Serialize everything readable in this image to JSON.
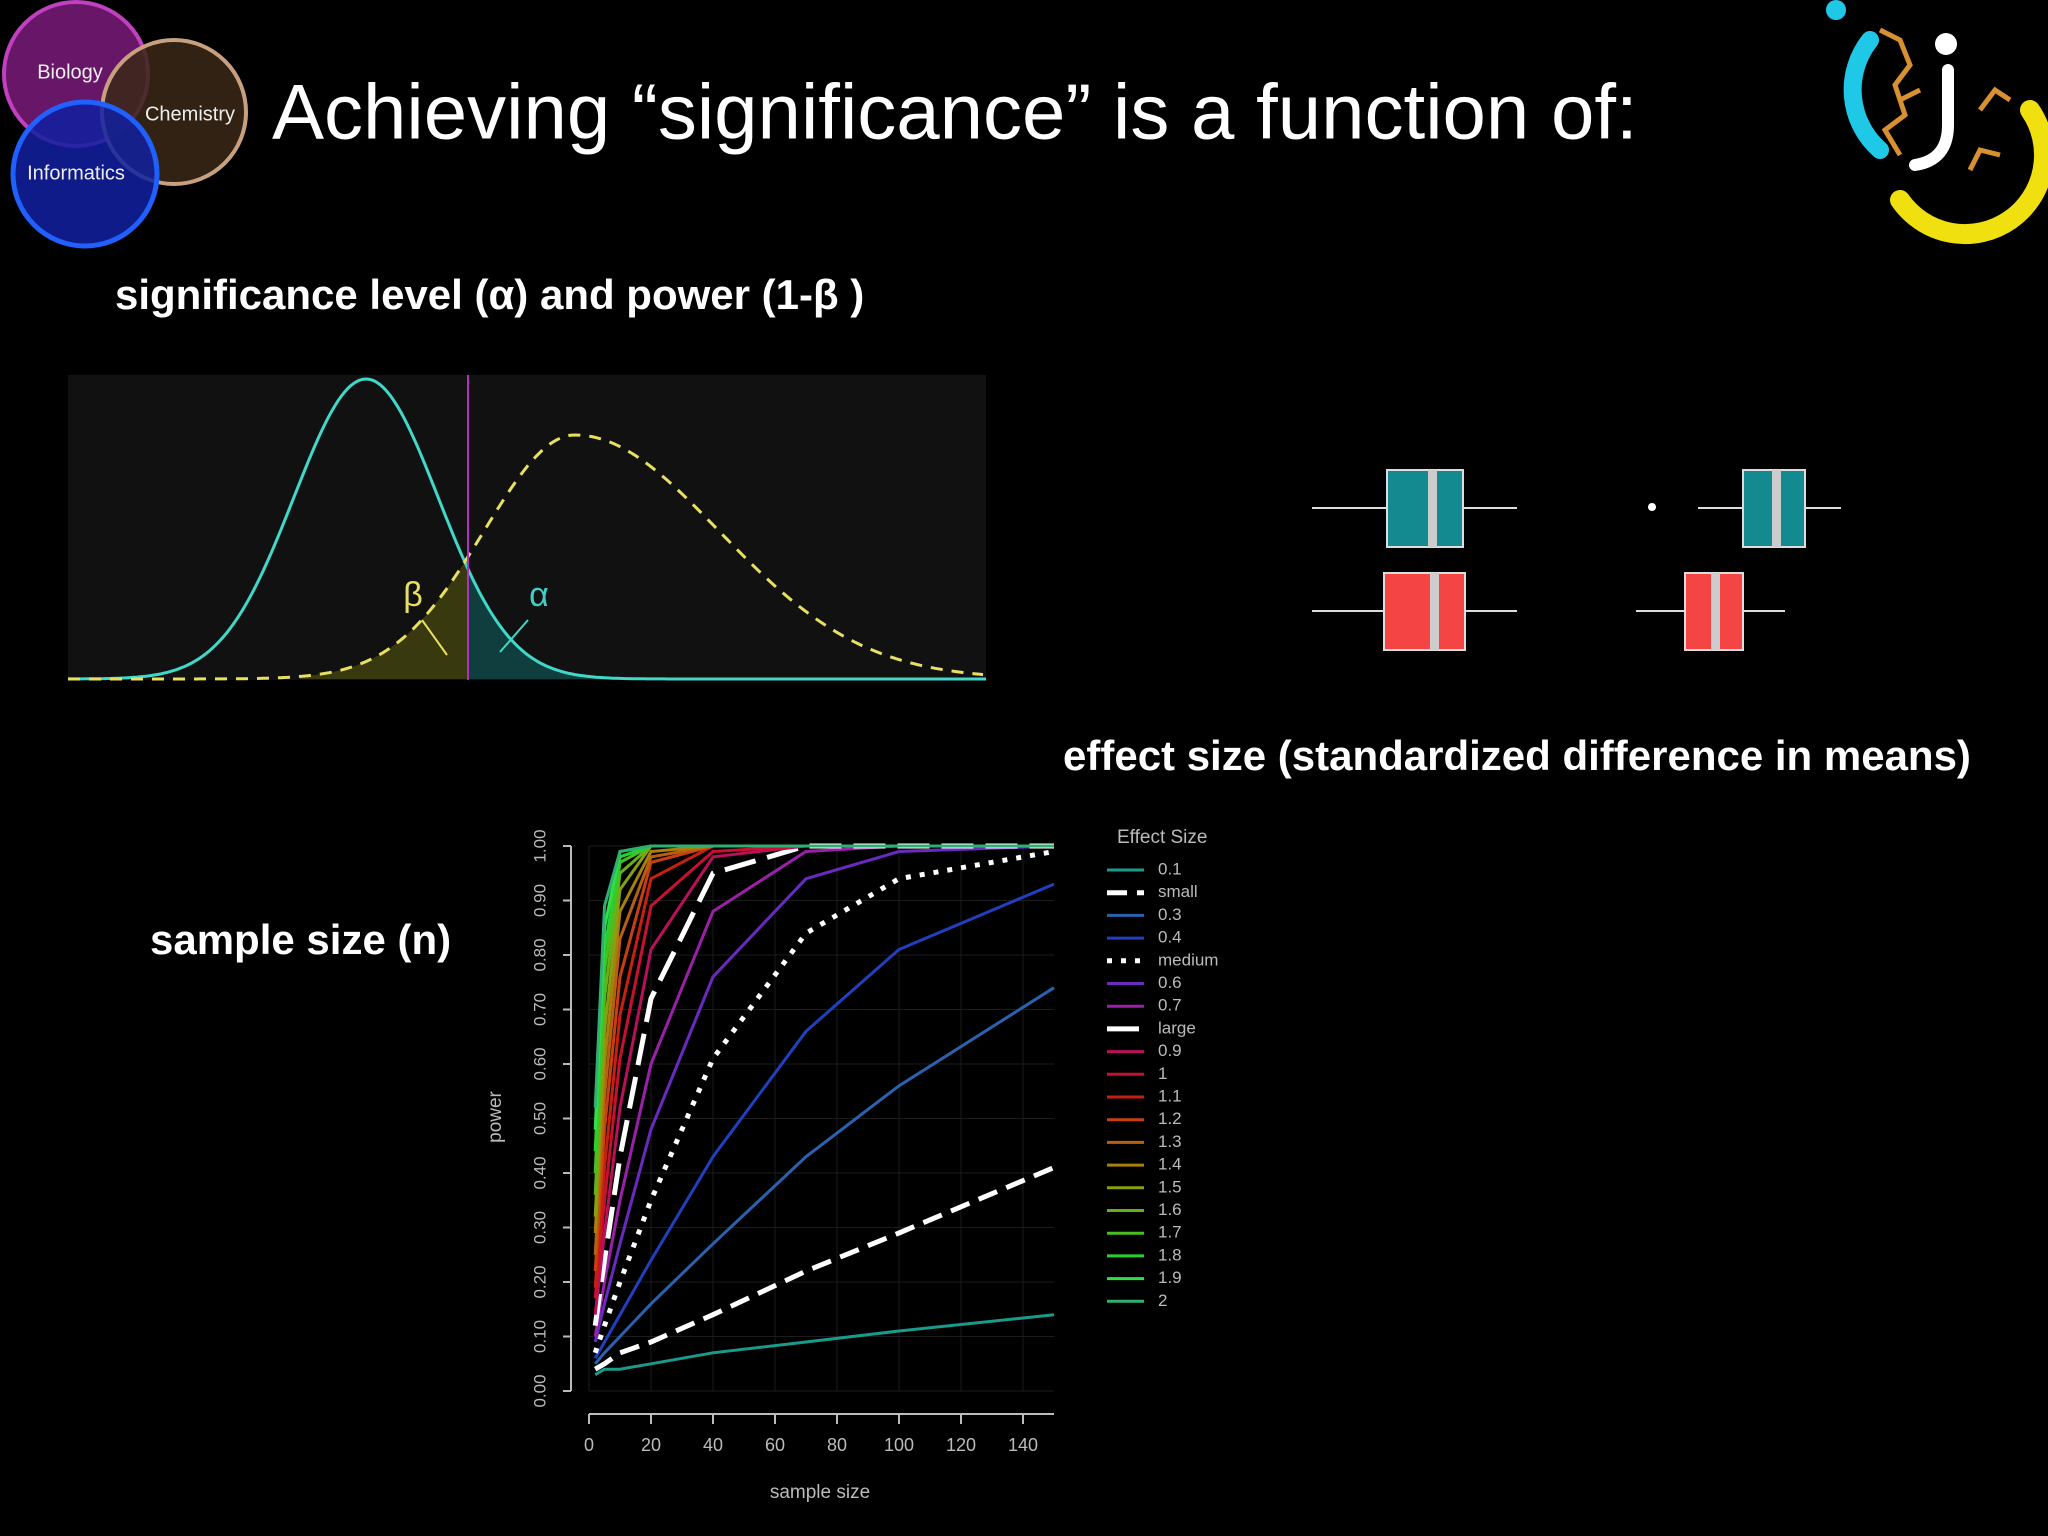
{
  "header": {
    "title": "Achieving “significance” is a function of:",
    "venn": [
      "Biology",
      "Chemistry",
      "Informatics"
    ]
  },
  "sections": {
    "significance": {
      "label": "significance level (α) and power (1-β )",
      "beta": "β",
      "alpha": "α"
    },
    "effect_size": {
      "label": "effect size (standardized difference in means)"
    },
    "sample_size": {
      "label": "sample size (n)"
    }
  },
  "chart_data": {
    "type": "line",
    "x_label": "sample size",
    "y_label": "power",
    "legend_title": "Effect Size",
    "grid": true,
    "x": [
      2,
      5,
      10,
      20,
      40,
      70,
      100,
      150
    ],
    "xlim": [
      0,
      150
    ],
    "xticks": [
      0,
      20,
      40,
      60,
      80,
      100,
      120,
      140
    ],
    "ylim": [
      0,
      1
    ],
    "yticks": [
      {
        "value": 0,
        "label": "0.00"
      },
      {
        "value": 0.1,
        "label": "0.10"
      },
      {
        "value": 0.2,
        "label": "0.20"
      },
      {
        "value": 0.3,
        "label": "0.30"
      },
      {
        "value": 0.4,
        "label": "0.40"
      },
      {
        "value": 0.5,
        "label": "0.50"
      },
      {
        "value": 0.6,
        "label": "0.60"
      },
      {
        "value": 0.7,
        "label": "0.70"
      },
      {
        "value": 0.8,
        "label": "0.80"
      },
      {
        "value": 0.9,
        "label": "0.90"
      },
      {
        "value": 1,
        "label": "1.00"
      }
    ],
    "series": [
      {
        "name": "0.1",
        "color": "#1a9a8a",
        "dash": "solid",
        "values": [
          0.03,
          0.04,
          0.04,
          0.05,
          0.07,
          0.09,
          0.11,
          0.14
        ]
      },
      {
        "name": "small",
        "color": "#ffffff",
        "dash": "dashed",
        "values": [
          0.04,
          0.05,
          0.07,
          0.09,
          0.14,
          0.22,
          0.29,
          0.41
        ]
      },
      {
        "name": "0.3",
        "color": "#2a62b0",
        "dash": "solid",
        "values": [
          0.05,
          0.07,
          0.1,
          0.16,
          0.27,
          0.43,
          0.56,
          0.74
        ]
      },
      {
        "name": "0.4",
        "color": "#2040c0",
        "dash": "solid",
        "values": [
          0.06,
          0.09,
          0.14,
          0.24,
          0.43,
          0.66,
          0.81,
          0.93
        ]
      },
      {
        "name": "medium",
        "color": "#ffffff",
        "dash": "dotted",
        "values": [
          0.07,
          0.12,
          0.2,
          0.35,
          0.61,
          0.84,
          0.94,
          0.99
        ]
      },
      {
        "name": "0.6",
        "color": "#6a2ac0",
        "dash": "solid",
        "values": [
          0.09,
          0.16,
          0.27,
          0.48,
          0.76,
          0.94,
          0.99,
          1
        ]
      },
      {
        "name": "0.7",
        "color": "#9a20a8",
        "dash": "solid",
        "values": [
          0.1,
          0.2,
          0.35,
          0.6,
          0.88,
          0.99,
          1,
          1
        ]
      },
      {
        "name": "large",
        "color": "#ffffff",
        "dash": "longdash",
        "values": [
          0.12,
          0.24,
          0.43,
          0.72,
          0.95,
          1,
          1,
          1
        ]
      },
      {
        "name": "0.9",
        "color": "#b8105a",
        "dash": "solid",
        "values": [
          0.14,
          0.29,
          0.52,
          0.81,
          0.98,
          1,
          1,
          1
        ]
      },
      {
        "name": "1",
        "color": "#c81030",
        "dash": "solid",
        "values": [
          0.17,
          0.35,
          0.61,
          0.89,
          0.99,
          1,
          1,
          1
        ]
      },
      {
        "name": "1.1",
        "color": "#c82010",
        "dash": "solid",
        "values": [
          0.19,
          0.41,
          0.69,
          0.94,
          1,
          1,
          1,
          1
        ]
      },
      {
        "name": "1.2",
        "color": "#c84010",
        "dash": "solid",
        "values": [
          0.22,
          0.48,
          0.76,
          0.97,
          1,
          1,
          1,
          1
        ]
      },
      {
        "name": "1.3",
        "color": "#b86010",
        "dash": "solid",
        "values": [
          0.25,
          0.54,
          0.83,
          0.98,
          1,
          1,
          1,
          1
        ]
      },
      {
        "name": "1.4",
        "color": "#a88010",
        "dash": "solid",
        "values": [
          0.29,
          0.6,
          0.88,
          0.99,
          1,
          1,
          1,
          1
        ]
      },
      {
        "name": "1.5",
        "color": "#88a010",
        "dash": "solid",
        "values": [
          0.32,
          0.66,
          0.92,
          1,
          1,
          1,
          1,
          1
        ]
      },
      {
        "name": "1.6",
        "color": "#68b018",
        "dash": "solid",
        "values": [
          0.36,
          0.72,
          0.95,
          1,
          1,
          1,
          1,
          1
        ]
      },
      {
        "name": "1.7",
        "color": "#48c020",
        "dash": "solid",
        "values": [
          0.4,
          0.77,
          0.97,
          1,
          1,
          1,
          1,
          1
        ]
      },
      {
        "name": "1.8",
        "color": "#28d030",
        "dash": "solid",
        "values": [
          0.44,
          0.81,
          0.98,
          1,
          1,
          1,
          1,
          1
        ]
      },
      {
        "name": "1.9",
        "color": "#30e048",
        "dash": "solid",
        "values": [
          0.48,
          0.85,
          0.99,
          1,
          1,
          1,
          1,
          1
        ]
      },
      {
        "name": "2",
        "color": "#30b070",
        "dash": "solid",
        "values": [
          0.52,
          0.89,
          0.99,
          1,
          1,
          1,
          1,
          1
        ]
      }
    ]
  }
}
